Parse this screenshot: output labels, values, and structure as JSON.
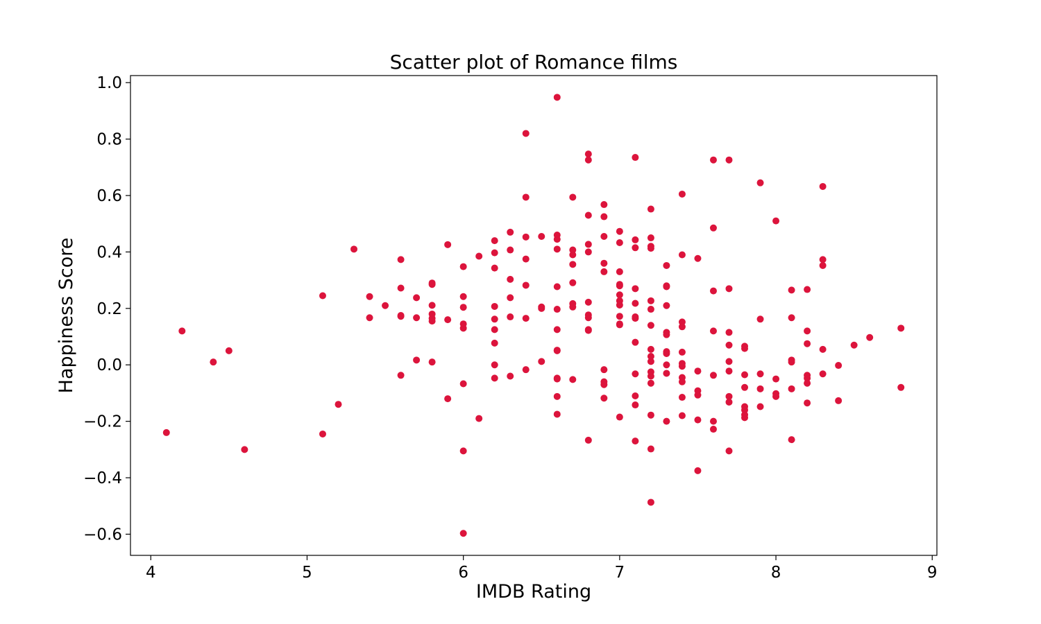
{
  "chart_data": {
    "type": "scatter",
    "title": "Scatter plot of Romance films",
    "xlabel": "IMDB Rating",
    "ylabel": "Happiness Score",
    "xlim": [
      3.87,
      9.03
    ],
    "ylim": [
      -0.675,
      1.025
    ],
    "xticks": [
      4,
      5,
      6,
      7,
      8,
      9
    ],
    "yticks": [
      -0.6,
      -0.4,
      -0.2,
      0.0,
      0.2,
      0.4,
      0.6,
      0.8,
      1.0
    ],
    "xtick_labels": [
      "4",
      "5",
      "6",
      "7",
      "8",
      "9"
    ],
    "ytick_labels": [
      "−0.6",
      "−0.4",
      "−0.2",
      "0.0",
      "0.2",
      "0.4",
      "0.6",
      "0.8",
      "1.0"
    ],
    "grid": false,
    "marker_color": "#dc143c",
    "points": [
      [
        4.1,
        -0.24
      ],
      [
        4.2,
        0.12
      ],
      [
        4.4,
        0.01
      ],
      [
        4.5,
        0.05
      ],
      [
        4.6,
        -0.3
      ],
      [
        5.1,
        0.245
      ],
      [
        5.1,
        -0.245
      ],
      [
        5.2,
        -0.14
      ],
      [
        5.3,
        0.41
      ],
      [
        5.4,
        0.242
      ],
      [
        5.4,
        0.167
      ],
      [
        5.5,
        0.21
      ],
      [
        5.6,
        0.373
      ],
      [
        5.6,
        0.272
      ],
      [
        5.6,
        0.175
      ],
      [
        5.6,
        0.172
      ],
      [
        5.6,
        -0.037
      ],
      [
        5.7,
        0.238
      ],
      [
        5.7,
        0.167
      ],
      [
        5.7,
        0.017
      ],
      [
        5.8,
        0.29
      ],
      [
        5.8,
        0.285
      ],
      [
        5.8,
        0.211
      ],
      [
        5.8,
        0.18
      ],
      [
        5.8,
        0.165
      ],
      [
        5.8,
        0.155
      ],
      [
        5.8,
        0.01
      ],
      [
        5.9,
        0.426
      ],
      [
        5.9,
        0.16
      ],
      [
        5.9,
        -0.12
      ],
      [
        6.0,
        0.348
      ],
      [
        6.0,
        0.242
      ],
      [
        6.0,
        0.204
      ],
      [
        6.0,
        0.145
      ],
      [
        6.0,
        0.13
      ],
      [
        6.0,
        -0.067
      ],
      [
        6.0,
        -0.305
      ],
      [
        6.0,
        -0.597
      ],
      [
        6.1,
        0.385
      ],
      [
        6.1,
        -0.19
      ],
      [
        6.2,
        0.44
      ],
      [
        6.2,
        0.397
      ],
      [
        6.2,
        0.343
      ],
      [
        6.2,
        0.207
      ],
      [
        6.2,
        0.162
      ],
      [
        6.2,
        0.125
      ],
      [
        6.2,
        0.077
      ],
      [
        6.2,
        0.0
      ],
      [
        6.2,
        -0.047
      ],
      [
        6.3,
        0.47
      ],
      [
        6.3,
        0.407
      ],
      [
        6.3,
        0.303
      ],
      [
        6.3,
        0.238
      ],
      [
        6.3,
        0.17
      ],
      [
        6.3,
        -0.04
      ],
      [
        6.4,
        0.82
      ],
      [
        6.4,
        0.594
      ],
      [
        6.4,
        0.453
      ],
      [
        6.4,
        0.375
      ],
      [
        6.4,
        0.282
      ],
      [
        6.4,
        0.165
      ],
      [
        6.4,
        -0.017
      ],
      [
        6.5,
        0.455
      ],
      [
        6.5,
        0.205
      ],
      [
        6.5,
        0.2
      ],
      [
        6.5,
        0.012
      ],
      [
        6.6,
        0.948
      ],
      [
        6.6,
        0.46
      ],
      [
        6.6,
        0.445
      ],
      [
        6.6,
        0.41
      ],
      [
        6.6,
        0.277
      ],
      [
        6.6,
        0.197
      ],
      [
        6.6,
        0.125
      ],
      [
        6.6,
        0.052
      ],
      [
        6.6,
        0.05
      ],
      [
        6.6,
        -0.047
      ],
      [
        6.6,
        -0.05
      ],
      [
        6.6,
        -0.112
      ],
      [
        6.6,
        -0.175
      ],
      [
        6.7,
        0.594
      ],
      [
        6.7,
        0.407
      ],
      [
        6.7,
        0.39
      ],
      [
        6.7,
        0.356
      ],
      [
        6.7,
        0.291
      ],
      [
        6.7,
        0.217
      ],
      [
        6.7,
        0.205
      ],
      [
        6.7,
        -0.052
      ],
      [
        6.8,
        0.747
      ],
      [
        6.8,
        0.726
      ],
      [
        6.8,
        0.53
      ],
      [
        6.8,
        0.427
      ],
      [
        6.8,
        0.4
      ],
      [
        6.8,
        0.222
      ],
      [
        6.8,
        0.177
      ],
      [
        6.8,
        0.167
      ],
      [
        6.8,
        0.125
      ],
      [
        6.8,
        0.122
      ],
      [
        6.8,
        -0.267
      ],
      [
        6.9,
        0.568
      ],
      [
        6.9,
        0.525
      ],
      [
        6.9,
        0.455
      ],
      [
        6.9,
        0.36
      ],
      [
        6.9,
        0.33
      ],
      [
        6.9,
        -0.017
      ],
      [
        6.9,
        -0.06
      ],
      [
        6.9,
        -0.07
      ],
      [
        6.9,
        -0.118
      ],
      [
        7.0,
        0.473
      ],
      [
        7.0,
        0.433
      ],
      [
        7.0,
        0.33
      ],
      [
        7.0,
        0.285
      ],
      [
        7.0,
        0.28
      ],
      [
        7.0,
        0.248
      ],
      [
        7.0,
        0.227
      ],
      [
        7.0,
        0.212
      ],
      [
        7.0,
        0.172
      ],
      [
        7.0,
        0.145
      ],
      [
        7.0,
        0.142
      ],
      [
        7.0,
        -0.185
      ],
      [
        7.1,
        0.735
      ],
      [
        7.1,
        0.443
      ],
      [
        7.1,
        0.415
      ],
      [
        7.1,
        0.27
      ],
      [
        7.1,
        0.218
      ],
      [
        7.1,
        0.17
      ],
      [
        7.1,
        0.165
      ],
      [
        7.1,
        0.08
      ],
      [
        7.1,
        -0.032
      ],
      [
        7.1,
        -0.11
      ],
      [
        7.1,
        -0.142
      ],
      [
        7.1,
        -0.27
      ],
      [
        7.2,
        0.552
      ],
      [
        7.2,
        0.45
      ],
      [
        7.2,
        0.42
      ],
      [
        7.2,
        0.413
      ],
      [
        7.2,
        0.227
      ],
      [
        7.2,
        0.197
      ],
      [
        7.2,
        0.14
      ],
      [
        7.2,
        0.055
      ],
      [
        7.2,
        0.03
      ],
      [
        7.2,
        0.012
      ],
      [
        7.2,
        -0.025
      ],
      [
        7.2,
        -0.04
      ],
      [
        7.2,
        -0.065
      ],
      [
        7.2,
        -0.178
      ],
      [
        7.2,
        -0.298
      ],
      [
        7.2,
        -0.487
      ],
      [
        7.3,
        0.352
      ],
      [
        7.3,
        0.28
      ],
      [
        7.3,
        0.277
      ],
      [
        7.3,
        0.21
      ],
      [
        7.3,
        0.115
      ],
      [
        7.3,
        0.107
      ],
      [
        7.3,
        0.047
      ],
      [
        7.3,
        0.04
      ],
      [
        7.3,
        0.0
      ],
      [
        7.3,
        -0.03
      ],
      [
        7.3,
        -0.2
      ],
      [
        7.4,
        0.605
      ],
      [
        7.4,
        0.39
      ],
      [
        7.4,
        0.152
      ],
      [
        7.4,
        0.135
      ],
      [
        7.4,
        0.045
      ],
      [
        7.4,
        0.005
      ],
      [
        7.4,
        -0.005
      ],
      [
        7.4,
        -0.045
      ],
      [
        7.4,
        -0.06
      ],
      [
        7.4,
        -0.115
      ],
      [
        7.4,
        -0.18
      ],
      [
        7.5,
        0.377
      ],
      [
        7.5,
        -0.022
      ],
      [
        7.5,
        -0.092
      ],
      [
        7.5,
        -0.107
      ],
      [
        7.5,
        -0.195
      ],
      [
        7.5,
        -0.375
      ],
      [
        7.6,
        0.726
      ],
      [
        7.6,
        0.485
      ],
      [
        7.6,
        0.262
      ],
      [
        7.6,
        0.12
      ],
      [
        7.6,
        -0.037
      ],
      [
        7.6,
        -0.2
      ],
      [
        7.6,
        -0.228
      ],
      [
        7.7,
        0.726
      ],
      [
        7.7,
        0.27
      ],
      [
        7.7,
        0.115
      ],
      [
        7.7,
        0.07
      ],
      [
        7.7,
        0.012
      ],
      [
        7.7,
        -0.022
      ],
      [
        7.7,
        -0.112
      ],
      [
        7.7,
        -0.132
      ],
      [
        7.7,
        -0.305
      ],
      [
        7.8,
        0.066
      ],
      [
        7.8,
        0.058
      ],
      [
        7.8,
        -0.035
      ],
      [
        7.8,
        -0.08
      ],
      [
        7.8,
        -0.148
      ],
      [
        7.8,
        -0.16
      ],
      [
        7.8,
        -0.177
      ],
      [
        7.8,
        -0.187
      ],
      [
        7.9,
        0.645
      ],
      [
        7.9,
        0.162
      ],
      [
        7.9,
        -0.032
      ],
      [
        7.9,
        -0.085
      ],
      [
        7.9,
        -0.148
      ],
      [
        8.0,
        0.51
      ],
      [
        8.0,
        -0.05
      ],
      [
        8.0,
        -0.102
      ],
      [
        8.0,
        -0.112
      ],
      [
        8.1,
        0.265
      ],
      [
        8.1,
        0.167
      ],
      [
        8.1,
        0.017
      ],
      [
        8.1,
        0.01
      ],
      [
        8.1,
        -0.085
      ],
      [
        8.1,
        -0.265
      ],
      [
        8.2,
        0.267
      ],
      [
        8.2,
        0.12
      ],
      [
        8.2,
        0.075
      ],
      [
        8.2,
        -0.037
      ],
      [
        8.2,
        -0.047
      ],
      [
        8.2,
        -0.065
      ],
      [
        8.2,
        -0.135
      ],
      [
        8.3,
        0.632
      ],
      [
        8.3,
        0.373
      ],
      [
        8.3,
        0.352
      ],
      [
        8.3,
        0.055
      ],
      [
        8.3,
        -0.032
      ],
      [
        8.4,
        -0.002
      ],
      [
        8.4,
        -0.127
      ],
      [
        8.5,
        0.07
      ],
      [
        8.6,
        0.097
      ],
      [
        8.8,
        0.13
      ],
      [
        8.8,
        -0.08
      ]
    ]
  }
}
